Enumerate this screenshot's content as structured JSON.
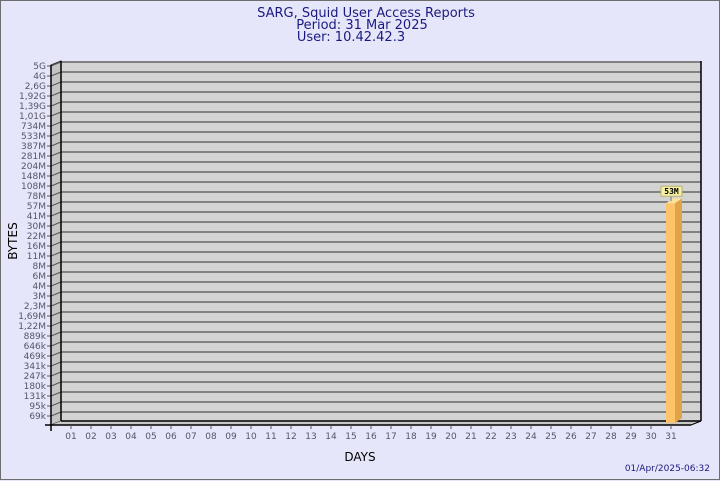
{
  "title_lines": [
    "SARG, Squid User Access Reports",
    "Period: 31 Mar 2025",
    "User: 10.42.42.3"
  ],
  "timestamp": "01/Apr/2025-06:32",
  "chart_data": {
    "type": "bar",
    "style": "3d",
    "title": "SARG, Squid User Access Reports",
    "subtitle": [
      "Period: 31 Mar 2025",
      "User: 10.42.42.3"
    ],
    "xlabel": "DAYS",
    "ylabel": "BYTES",
    "y_scale": "log",
    "grid": true,
    "y_tick_labels": [
      "69k",
      "95k",
      "131k",
      "180k",
      "247k",
      "341k",
      "469k",
      "646k",
      "889k",
      "1,22M",
      "1,69M",
      "2,3M",
      "3M",
      "4M",
      "6M",
      "8M",
      "11M",
      "16M",
      "22M",
      "30M",
      "41M",
      "57M",
      "78M",
      "108M",
      "148M",
      "204M",
      "281M",
      "387M",
      "533M",
      "734M",
      "1,01G",
      "1,39G",
      "1,92G",
      "2,6G",
      "4G",
      "5G"
    ],
    "categories": [
      "01",
      "02",
      "03",
      "04",
      "05",
      "06",
      "07",
      "08",
      "09",
      "10",
      "11",
      "12",
      "13",
      "14",
      "15",
      "16",
      "17",
      "18",
      "19",
      "20",
      "21",
      "22",
      "23",
      "24",
      "25",
      "26",
      "27",
      "28",
      "29",
      "30",
      "31"
    ],
    "series": [
      {
        "values": [
          null,
          null,
          null,
          null,
          null,
          null,
          null,
          null,
          null,
          null,
          null,
          null,
          null,
          null,
          null,
          null,
          null,
          null,
          null,
          null,
          null,
          null,
          null,
          null,
          null,
          null,
          null,
          null,
          null,
          null,
          53000000
        ]
      }
    ],
    "data_labels": {
      "31": "53M"
    },
    "colors": {
      "bar_front": "#ffc46a",
      "bar_side": "#e0a448",
      "bar_top": "#ffe29a",
      "plot_bg": "#d3d3d3",
      "grid": "#666666",
      "page_bg": "#e6e6fa",
      "label_bg": "#f5f0a0"
    }
  }
}
